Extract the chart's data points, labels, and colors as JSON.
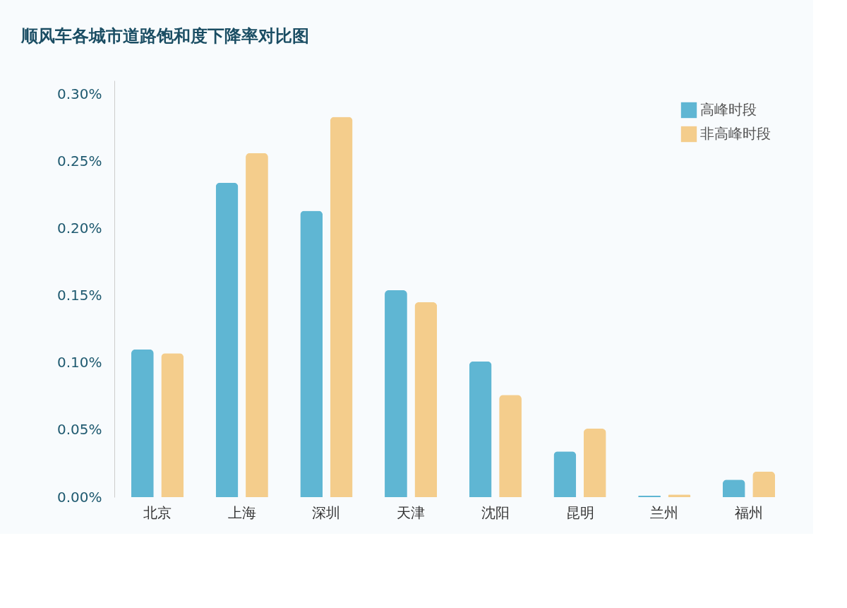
{
  "chart_data": {
    "type": "bar",
    "title": "顺风车各城市道路饱和度下降率对比图",
    "categories": [
      "北京",
      "上海",
      "深圳",
      "天津",
      "沈阳",
      "昆明",
      "兰州",
      "福州"
    ],
    "series": [
      {
        "name": "高峰时段",
        "color": "#5fb6d3",
        "values": [
          0.11,
          0.234,
          0.213,
          0.154,
          0.101,
          0.034,
          0.001,
          0.013
        ]
      },
      {
        "name": "非高峰时段",
        "color": "#f4cd8c",
        "values": [
          0.107,
          0.256,
          0.283,
          0.145,
          0.076,
          0.051,
          0.002,
          0.019
        ]
      }
    ],
    "ylim": [
      0,
      0.31
    ],
    "yticks": [
      {
        "value": 0,
        "label": "0.00%"
      },
      {
        "value": 0.05,
        "label": "0.05%"
      },
      {
        "value": 0.1,
        "label": "0.10%"
      },
      {
        "value": 0.15,
        "label": "0.15%"
      },
      {
        "value": 0.2,
        "label": "0.20%"
      },
      {
        "value": 0.25,
        "label": "0.25%"
      },
      {
        "value": 0.3,
        "label": "0.30%"
      }
    ],
    "grid": false,
    "legend": "top right"
  }
}
